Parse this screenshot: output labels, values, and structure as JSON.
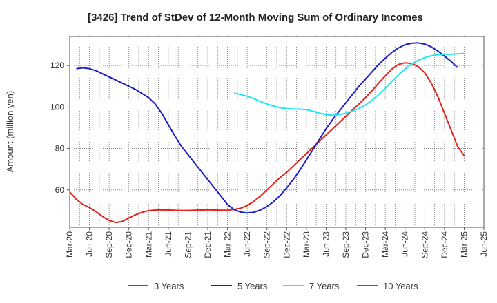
{
  "chart_data": {
    "type": "line",
    "title": "[3426]  Trend of StDev of 12-Month Moving Sum of Ordinary Incomes",
    "xlabel": "",
    "ylabel": "Amount (million yen)",
    "ylim": [
      42,
      134
    ],
    "yticks": [
      60,
      80,
      100,
      120
    ],
    "xticks": [
      "Mar-20",
      "Jun-20",
      "Sep-20",
      "Dec-20",
      "Mar-21",
      "Jun-21",
      "Sep-21",
      "Dec-21",
      "Mar-22",
      "Jun-22",
      "Sep-22",
      "Dec-22",
      "Mar-23",
      "Jun-23",
      "Sep-23",
      "Dec-23",
      "Mar-24",
      "Jun-24",
      "Sep-24",
      "Dec-24",
      "Mar-25",
      "Jun-25"
    ],
    "grid": true,
    "legend_position": "bottom",
    "series": [
      {
        "name": "3 Years",
        "color": "#e8201a",
        "points": [
          [
            "Mar-20",
            59
          ],
          [
            "Apr-20",
            55.5
          ],
          [
            "May-20",
            53
          ],
          [
            "Jun-20",
            51.5
          ],
          [
            "Jul-20",
            49.5
          ],
          [
            "Aug-20",
            47.2
          ],
          [
            "Sep-20",
            45.3
          ],
          [
            "Oct-20",
            44.3
          ],
          [
            "Nov-20",
            44.8
          ],
          [
            "Dec-20",
            46.5
          ],
          [
            "Jan-21",
            48
          ],
          [
            "Feb-21",
            49.2
          ],
          [
            "Mar-21",
            50
          ],
          [
            "Apr-21",
            50.3
          ],
          [
            "May-21",
            50.4
          ],
          [
            "Jun-21",
            50.3
          ],
          [
            "Jul-21",
            50.2
          ],
          [
            "Aug-21",
            50.1
          ],
          [
            "Sep-21",
            50.1
          ],
          [
            "Oct-21",
            50.2
          ],
          [
            "Nov-21",
            50.3
          ],
          [
            "Dec-21",
            50.4
          ],
          [
            "Jan-22",
            50.3
          ],
          [
            "Feb-22",
            50.2
          ],
          [
            "Mar-22",
            50.2
          ],
          [
            "Apr-22",
            50.6
          ],
          [
            "May-22",
            51.2
          ],
          [
            "Jun-22",
            52.5
          ],
          [
            "Jul-22",
            54.5
          ],
          [
            "Aug-22",
            57
          ],
          [
            "Sep-22",
            60
          ],
          [
            "Oct-22",
            63
          ],
          [
            "Nov-22",
            66
          ],
          [
            "Dec-22",
            68.5
          ],
          [
            "Jan-23",
            71.5
          ],
          [
            "Feb-23",
            74.5
          ],
          [
            "Mar-23",
            77.5
          ],
          [
            "Apr-23",
            80.5
          ],
          [
            "May-23",
            83.5
          ],
          [
            "Jun-23",
            86.5
          ],
          [
            "Jul-23",
            89.5
          ],
          [
            "Aug-23",
            92.5
          ],
          [
            "Sep-23",
            95.5
          ],
          [
            "Oct-23",
            98.5
          ],
          [
            "Nov-23",
            101.5
          ],
          [
            "Dec-23",
            104.5
          ],
          [
            "Jan-24",
            108
          ],
          [
            "Feb-24",
            111.5
          ],
          [
            "Mar-24",
            115
          ],
          [
            "Apr-24",
            118.3
          ],
          [
            "May-24",
            120.5
          ],
          [
            "Jun-24",
            121.3
          ],
          [
            "Jul-24",
            121
          ],
          [
            "Aug-24",
            119.5
          ],
          [
            "Sep-24",
            116.5
          ],
          [
            "Oct-24",
            111.5
          ],
          [
            "Nov-24",
            105
          ],
          [
            "Dec-24",
            97
          ],
          [
            "Jan-25",
            89
          ],
          [
            "Feb-25",
            81
          ],
          [
            "Mar-25",
            76.5
          ]
        ]
      },
      {
        "name": "5 Years",
        "color": "#1c1cc8",
        "points": [
          [
            "Mar-20",
            null
          ],
          [
            "Apr-20",
            118.5
          ],
          [
            "May-20",
            118.9
          ],
          [
            "Jun-20",
            118.5
          ],
          [
            "Jul-20",
            117.5
          ],
          [
            "Aug-20",
            116
          ],
          [
            "Sep-20",
            114.5
          ],
          [
            "Oct-20",
            113
          ],
          [
            "Nov-20",
            111.5
          ],
          [
            "Dec-20",
            110
          ],
          [
            "Jan-21",
            108.5
          ],
          [
            "Feb-21",
            106.5
          ],
          [
            "Mar-21",
            104.5
          ],
          [
            "Apr-21",
            101.5
          ],
          [
            "May-21",
            97
          ],
          [
            "Jun-21",
            91.5
          ],
          [
            "Jul-21",
            86
          ],
          [
            "Aug-21",
            81
          ],
          [
            "Sep-21",
            77
          ],
          [
            "Oct-21",
            73
          ],
          [
            "Nov-21",
            69
          ],
          [
            "Dec-21",
            65
          ],
          [
            "Jan-22",
            61
          ],
          [
            "Feb-22",
            57
          ],
          [
            "Mar-22",
            53
          ],
          [
            "Apr-22",
            50.5
          ],
          [
            "May-22",
            49.3
          ],
          [
            "Jun-22",
            48.9
          ],
          [
            "Jul-22",
            49.2
          ],
          [
            "Aug-22",
            50.3
          ],
          [
            "Sep-22",
            52
          ],
          [
            "Oct-22",
            54.3
          ],
          [
            "Nov-22",
            57.3
          ],
          [
            "Dec-22",
            61
          ],
          [
            "Jan-23",
            65
          ],
          [
            "Feb-23",
            69.5
          ],
          [
            "Mar-23",
            74.5
          ],
          [
            "Apr-23",
            79.5
          ],
          [
            "May-23",
            84.5
          ],
          [
            "Jun-23",
            89.5
          ],
          [
            "Jul-23",
            94
          ],
          [
            "Aug-23",
            98
          ],
          [
            "Sep-23",
            102
          ],
          [
            "Oct-23",
            106
          ],
          [
            "Nov-23",
            110
          ],
          [
            "Dec-23",
            113.5
          ],
          [
            "Jan-24",
            117
          ],
          [
            "Feb-24",
            120.5
          ],
          [
            "Mar-24",
            123.5
          ],
          [
            "Apr-24",
            126.3
          ],
          [
            "May-24",
            128.5
          ],
          [
            "Jun-24",
            130
          ],
          [
            "Jul-24",
            130.7
          ],
          [
            "Aug-24",
            130.9
          ],
          [
            "Sep-24",
            130.3
          ],
          [
            "Oct-24",
            129
          ],
          [
            "Nov-24",
            127
          ],
          [
            "Dec-24",
            124.5
          ],
          [
            "Jan-25",
            122
          ],
          [
            "Feb-25",
            119
          ]
        ]
      },
      {
        "name": "7 Years",
        "color": "#1ce8f0",
        "points": [
          [
            "Apr-22",
            106.7
          ],
          [
            "May-22",
            106
          ],
          [
            "Jun-22",
            105.2
          ],
          [
            "Jul-22",
            104
          ],
          [
            "Aug-22",
            102.7
          ],
          [
            "Sep-22",
            101.5
          ],
          [
            "Oct-22",
            100.5
          ],
          [
            "Nov-22",
            99.7
          ],
          [
            "Dec-22",
            99.2
          ],
          [
            "Jan-23",
            99
          ],
          [
            "Feb-23",
            99
          ],
          [
            "Mar-23",
            98.7
          ],
          [
            "Apr-23",
            98
          ],
          [
            "May-23",
            97
          ],
          [
            "Jun-23",
            96.3
          ],
          [
            "Jul-23",
            96
          ],
          [
            "Aug-23",
            96.3
          ],
          [
            "Sep-23",
            97
          ],
          [
            "Oct-23",
            98
          ],
          [
            "Nov-23",
            99.3
          ],
          [
            "Dec-23",
            101
          ],
          [
            "Jan-24",
            103.3
          ],
          [
            "Feb-24",
            106
          ],
          [
            "Mar-24",
            109
          ],
          [
            "Apr-24",
            112.3
          ],
          [
            "May-24",
            115.5
          ],
          [
            "Jun-24",
            118.3
          ],
          [
            "Jul-24",
            120.7
          ],
          [
            "Aug-24",
            122.5
          ],
          [
            "Sep-24",
            123.8
          ],
          [
            "Oct-24",
            124.7
          ],
          [
            "Nov-24",
            125.2
          ],
          [
            "Dec-24",
            125.4
          ],
          [
            "Jan-25",
            125.4
          ],
          [
            "Feb-25",
            125.6
          ],
          [
            "Mar-25",
            125.8
          ]
        ]
      },
      {
        "name": "10 Years",
        "color": "#1e8c1e",
        "points": []
      }
    ]
  }
}
